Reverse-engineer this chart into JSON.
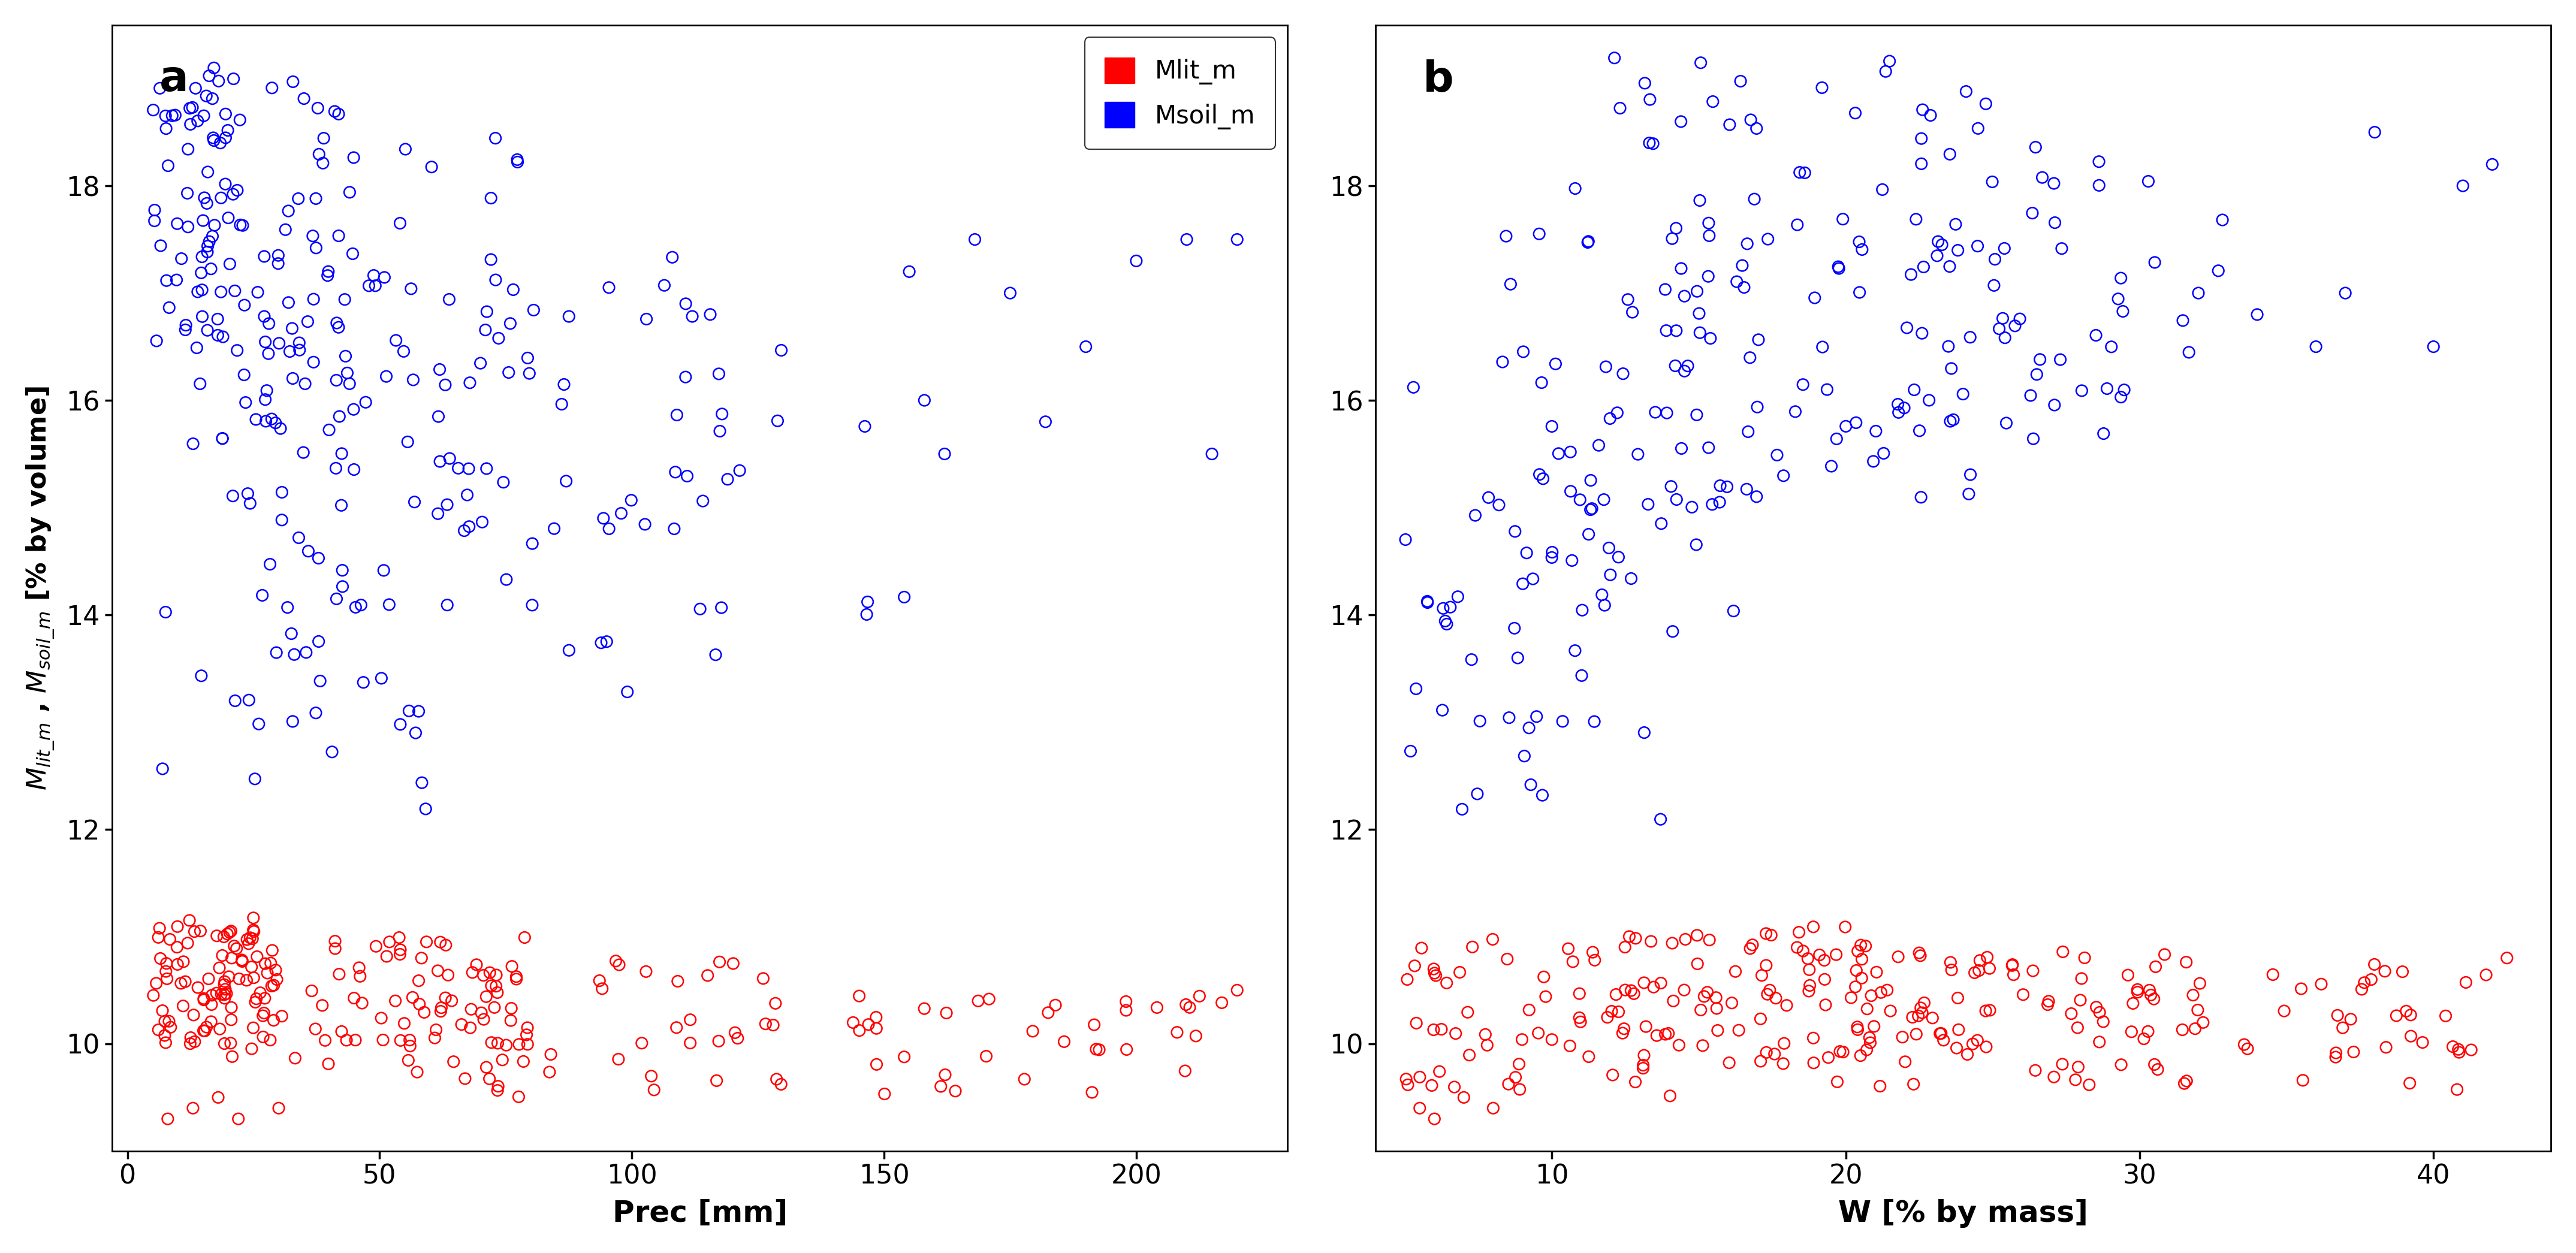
{
  "title_a": "a",
  "title_b": "b",
  "xlabel_a": "Prec [mm]",
  "xlabel_b": "W [% by mass]",
  "legend_label_red": "Mlit_m",
  "legend_label_blue": "Msoil_m",
  "blue_color": "#0000FF",
  "red_color": "#FF0000",
  "ylim": [
    9.0,
    19.5
  ],
  "xlim_a": [
    -3,
    230
  ],
  "xlim_b": [
    4,
    44
  ],
  "yticks": [
    10,
    12,
    14,
    16,
    18
  ],
  "xticks_a": [
    0,
    50,
    100,
    150,
    200
  ],
  "xticks_b": [
    10,
    20,
    30,
    40
  ],
  "marker_size": 180,
  "linewidth": 1.8,
  "bg_color": "#FFFFFF",
  "fontsize_label": 36,
  "fontsize_tick": 32,
  "fontsize_title": 52,
  "fontsize_legend": 30
}
